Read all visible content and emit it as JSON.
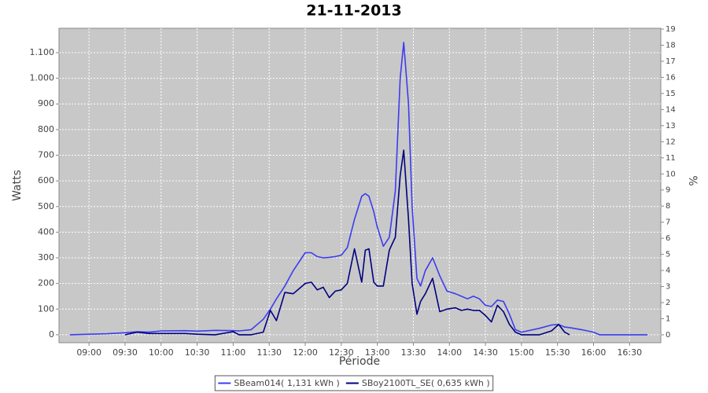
{
  "chart_data": {
    "type": "line",
    "title": "21-11-2013",
    "x_label": "Période",
    "y_label": "Watts",
    "y2_label": "%",
    "x": [
      "08:44",
      "09:00",
      "09:15",
      "09:30",
      "09:40",
      "09:50",
      "10:00",
      "10:20",
      "10:30",
      "10:45",
      "11:00",
      "11:05",
      "11:15",
      "11:25",
      "11:31",
      "11:36",
      "11:43",
      "11:50",
      "12:00",
      "12:05",
      "12:10",
      "12:15",
      "12:20",
      "12:25",
      "12:30",
      "12:35",
      "12:41",
      "12:47",
      "12:50",
      "12:53",
      "12:57",
      "13:00",
      "13:05",
      "13:10",
      "13:15",
      "13:19",
      "13:22",
      "13:26",
      "13:29",
      "13:33",
      "13:36",
      "13:40",
      "13:46",
      "13:52",
      "13:58",
      "14:05",
      "14:10",
      "14:15",
      "14:20",
      "14:25",
      "14:30",
      "14:35",
      "14:40",
      "14:45",
      "14:50",
      "14:55",
      "15:00",
      "15:15",
      "15:25",
      "15:31",
      "15:36",
      "15:40",
      "15:50",
      "16:00",
      "16:05",
      "16:45"
    ],
    "series": [
      {
        "name": "SBeam014( 1,131 kWh )",
        "color": "#3c3cf0",
        "values": [
          0,
          2,
          4,
          8,
          12,
          10,
          15,
          16,
          14,
          17,
          16,
          15,
          20,
          60,
          100,
          140,
          190,
          250,
          320,
          320,
          305,
          300,
          302,
          305,
          310,
          340,
          450,
          540,
          550,
          540,
          480,
          420,
          345,
          380,
          560,
          1000,
          1140,
          900,
          500,
          220,
          190,
          250,
          300,
          230,
          170,
          160,
          150,
          140,
          150,
          140,
          115,
          110,
          135,
          130,
          80,
          20,
          10,
          25,
          38,
          40,
          30,
          28,
          20,
          10,
          0,
          0
        ]
      },
      {
        "name": "SBoy2100TL_SE( 0,635 kWh )",
        "color": "#000080",
        "values": [
          null,
          null,
          null,
          0,
          10,
          5,
          5,
          5,
          2,
          0,
          12,
          0,
          0,
          10,
          95,
          55,
          165,
          160,
          200,
          205,
          175,
          185,
          145,
          170,
          175,
          200,
          335,
          205,
          330,
          335,
          205,
          190,
          190,
          330,
          380,
          620,
          720,
          450,
          200,
          80,
          130,
          160,
          220,
          90,
          100,
          105,
          95,
          100,
          95,
          95,
          75,
          50,
          115,
          90,
          40,
          10,
          0,
          0,
          15,
          40,
          10,
          0,
          null,
          null,
          null,
          null
        ]
      }
    ],
    "xlim": [
      "08:35",
      "16:56"
    ],
    "xticks": [
      "09:00",
      "09:30",
      "10:00",
      "10:30",
      "11:00",
      "11:30",
      "12:00",
      "12:30",
      "13:00",
      "13:30",
      "14:00",
      "14:30",
      "15:00",
      "15:30",
      "16:00",
      "16:30"
    ],
    "ylim": [
      -31,
      1195
    ],
    "yticks": [
      0,
      100,
      200,
      300,
      400,
      500,
      600,
      700,
      800,
      900,
      {
        "value": 1000,
        "label": "1.000"
      },
      {
        "value": 1100,
        "label": "1.100"
      }
    ],
    "y2lim": [
      -0.49,
      19.05
    ],
    "y2ticks": [
      0,
      1,
      2,
      3,
      4,
      5,
      6,
      7,
      8,
      9,
      10,
      11,
      12,
      13,
      14,
      15,
      16,
      17,
      18,
      19
    ],
    "grid": true,
    "legend": "bottom"
  }
}
